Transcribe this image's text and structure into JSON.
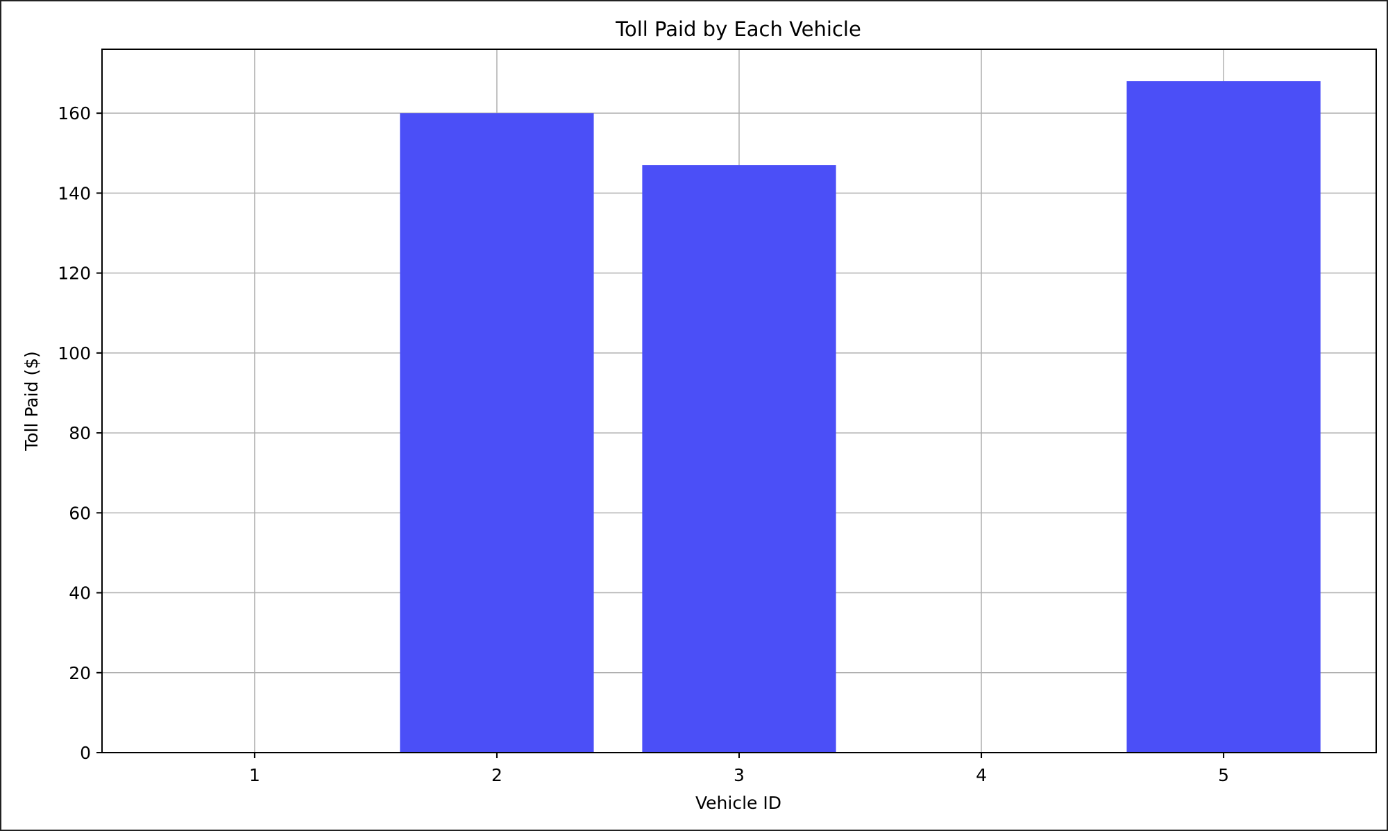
{
  "chart_data": {
    "type": "bar",
    "title": "Toll Paid by Each Vehicle",
    "xlabel": "Vehicle ID",
    "ylabel": "Toll Paid ($)",
    "categories": [
      "1",
      "2",
      "3",
      "4",
      "5"
    ],
    "values": [
      0,
      160,
      147,
      0,
      168
    ],
    "ylim": [
      0,
      176
    ],
    "yticks": [
      0,
      20,
      40,
      60,
      80,
      100,
      120,
      140,
      160
    ],
    "grid": true,
    "bar_color": "#4b4ff7",
    "legend": "none"
  }
}
